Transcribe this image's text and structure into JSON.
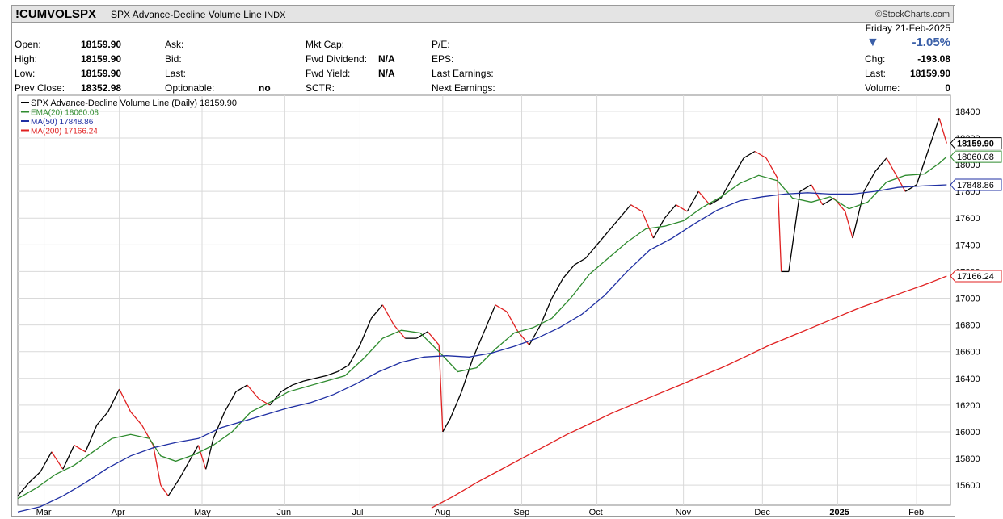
{
  "header": {
    "symbol": "!CUMVOLSPX",
    "name": "SPX Advance-Decline Volume Line",
    "exchange": "INDX",
    "brand": "©StockCharts.com"
  },
  "quote": {
    "open_label": "Open:",
    "open": "18159.90",
    "high_label": "High:",
    "high": "18159.90",
    "low_label": "Low:",
    "low": "18159.90",
    "prev_label": "Prev Close:",
    "prev": "18352.98",
    "ask_label": "Ask:",
    "bid_label": "Bid:",
    "last_label": "Last:",
    "optionable_label": "Optionable:",
    "optionable": "no",
    "mktcap_label": "Mkt Cap:",
    "fwddiv_label": "Fwd Dividend:",
    "fwddiv": "N/A",
    "fwdyield_label": "Fwd Yield:",
    "fwdyield": "N/A",
    "sctr_label": "SCTR:",
    "pe_label": "P/E:",
    "eps_label": "EPS:",
    "lastearn_label": "Last Earnings:",
    "nextearn_label": "Next Earnings:",
    "date": "Friday  21-Feb-2025",
    "change_pct": "-1.05%",
    "chg_label": "Chg:",
    "chg": "-193.08",
    "last_label2": "Last:",
    "last": "18159.90",
    "volume_label": "Volume:",
    "volume": "0",
    "down_color": "#3a5fa8"
  },
  "legend": [
    {
      "label": "SPX Advance-Decline Volume Line (Daily) 18159.90",
      "color": "#000000"
    },
    {
      "label": "EMA(20) 18060.08",
      "color": "#2e8b2e"
    },
    {
      "label": "MA(50) 17848.86",
      "color": "#1f2fa3"
    },
    {
      "label": "MA(200) 17166.24",
      "color": "#e02020"
    }
  ],
  "price_tags": [
    {
      "value": 18159.9,
      "label": "18159.90",
      "color": "#000000"
    },
    {
      "value": 18060.08,
      "label": "18060.08",
      "color": "#2e8b2e"
    },
    {
      "value": 17848.86,
      "label": "17848.86",
      "color": "#1f2fa3"
    },
    {
      "value": 17166.24,
      "label": "17166.24",
      "color": "#e02020"
    }
  ],
  "chart_data": {
    "type": "line",
    "ylim": [
      15450,
      18520
    ],
    "yticks": [
      15600,
      15800,
      16000,
      16200,
      16400,
      16600,
      16800,
      17000,
      17200,
      17400,
      17600,
      17800,
      18000,
      18200,
      18400
    ],
    "xlim": [
      0,
      248
    ],
    "xticks": [
      {
        "label": "Mar",
        "x": 7
      },
      {
        "label": "Apr",
        "x": 27
      },
      {
        "label": "May",
        "x": 49
      },
      {
        "label": "Jun",
        "x": 71
      },
      {
        "label": "Jul",
        "x": 91
      },
      {
        "label": "Aug",
        "x": 113
      },
      {
        "label": "Sep",
        "x": 134
      },
      {
        "label": "Oct",
        "x": 154
      },
      {
        "label": "Nov",
        "x": 177
      },
      {
        "label": "Dec",
        "x": 198
      },
      {
        "label": "2025",
        "x": 218,
        "bold": true
      },
      {
        "label": "Feb",
        "x": 239
      }
    ],
    "grid": true,
    "up_color": "#000000",
    "down_color": "#e02020",
    "series": [
      {
        "name": "SPX Advance-Decline Volume Line (Daily)",
        "color": "#000000",
        "kind": "price",
        "points": [
          [
            0,
            15520
          ],
          [
            3,
            15620
          ],
          [
            6,
            15700
          ],
          [
            9,
            15850
          ],
          [
            12,
            15720
          ],
          [
            15,
            15900
          ],
          [
            18,
            15850
          ],
          [
            21,
            16050
          ],
          [
            24,
            16150
          ],
          [
            27,
            16320
          ],
          [
            30,
            16150
          ],
          [
            33,
            16050
          ],
          [
            36,
            15900
          ],
          [
            38,
            15600
          ],
          [
            40,
            15520
          ],
          [
            43,
            15650
          ],
          [
            46,
            15800
          ],
          [
            48,
            15900
          ],
          [
            50,
            15720
          ],
          [
            52,
            15950
          ],
          [
            55,
            16150
          ],
          [
            58,
            16300
          ],
          [
            61,
            16350
          ],
          [
            64,
            16250
          ],
          [
            67,
            16200
          ],
          [
            70,
            16300
          ],
          [
            73,
            16350
          ],
          [
            76,
            16380
          ],
          [
            79,
            16400
          ],
          [
            82,
            16420
          ],
          [
            85,
            16450
          ],
          [
            88,
            16500
          ],
          [
            91,
            16650
          ],
          [
            94,
            16850
          ],
          [
            97,
            16950
          ],
          [
            100,
            16800
          ],
          [
            103,
            16700
          ],
          [
            106,
            16700
          ],
          [
            109,
            16750
          ],
          [
            112,
            16650
          ],
          [
            113,
            16000
          ],
          [
            115,
            16100
          ],
          [
            118,
            16300
          ],
          [
            121,
            16550
          ],
          [
            124,
            16750
          ],
          [
            127,
            16950
          ],
          [
            130,
            16900
          ],
          [
            133,
            16750
          ],
          [
            136,
            16650
          ],
          [
            139,
            16800
          ],
          [
            142,
            17000
          ],
          [
            145,
            17150
          ],
          [
            148,
            17250
          ],
          [
            151,
            17300
          ],
          [
            154,
            17400
          ],
          [
            157,
            17500
          ],
          [
            160,
            17600
          ],
          [
            163,
            17700
          ],
          [
            166,
            17650
          ],
          [
            169,
            17450
          ],
          [
            172,
            17600
          ],
          [
            175,
            17700
          ],
          [
            178,
            17650
          ],
          [
            181,
            17800
          ],
          [
            184,
            17700
          ],
          [
            187,
            17750
          ],
          [
            190,
            17900
          ],
          [
            193,
            18050
          ],
          [
            196,
            18100
          ],
          [
            199,
            18050
          ],
          [
            202,
            17900
          ],
          [
            203,
            17200
          ],
          [
            205,
            17200
          ],
          [
            208,
            17800
          ],
          [
            211,
            17850
          ],
          [
            214,
            17700
          ],
          [
            217,
            17750
          ],
          [
            220,
            17650
          ],
          [
            222,
            17450
          ],
          [
            225,
            17800
          ],
          [
            228,
            17950
          ],
          [
            231,
            18050
          ],
          [
            234,
            17900
          ],
          [
            236,
            17800
          ],
          [
            239,
            17850
          ],
          [
            242,
            18100
          ],
          [
            245,
            18350
          ],
          [
            247,
            18160
          ]
        ]
      },
      {
        "name": "EMA(20)",
        "color": "#2e8b2e",
        "kind": "ma",
        "points": [
          [
            0,
            15500
          ],
          [
            5,
            15580
          ],
          [
            10,
            15680
          ],
          [
            15,
            15750
          ],
          [
            20,
            15850
          ],
          [
            25,
            15950
          ],
          [
            30,
            15980
          ],
          [
            35,
            15950
          ],
          [
            38,
            15820
          ],
          [
            42,
            15780
          ],
          [
            47,
            15830
          ],
          [
            52,
            15900
          ],
          [
            57,
            16000
          ],
          [
            62,
            16150
          ],
          [
            67,
            16220
          ],
          [
            72,
            16300
          ],
          [
            77,
            16340
          ],
          [
            82,
            16380
          ],
          [
            87,
            16420
          ],
          [
            92,
            16550
          ],
          [
            97,
            16700
          ],
          [
            102,
            16760
          ],
          [
            107,
            16740
          ],
          [
            112,
            16600
          ],
          [
            117,
            16450
          ],
          [
            122,
            16480
          ],
          [
            127,
            16620
          ],
          [
            132,
            16740
          ],
          [
            137,
            16780
          ],
          [
            142,
            16850
          ],
          [
            147,
            17000
          ],
          [
            152,
            17180
          ],
          [
            157,
            17300
          ],
          [
            162,
            17420
          ],
          [
            167,
            17520
          ],
          [
            172,
            17540
          ],
          [
            177,
            17580
          ],
          [
            182,
            17680
          ],
          [
            187,
            17760
          ],
          [
            192,
            17860
          ],
          [
            197,
            17920
          ],
          [
            202,
            17880
          ],
          [
            206,
            17750
          ],
          [
            211,
            17720
          ],
          [
            216,
            17760
          ],
          [
            221,
            17670
          ],
          [
            226,
            17720
          ],
          [
            231,
            17870
          ],
          [
            236,
            17920
          ],
          [
            241,
            17930
          ],
          [
            245,
            18010
          ],
          [
            247,
            18060
          ]
        ]
      },
      {
        "name": "MA(50)",
        "color": "#1f2fa3",
        "kind": "ma",
        "points": [
          [
            0,
            15400
          ],
          [
            6,
            15440
          ],
          [
            12,
            15520
          ],
          [
            18,
            15620
          ],
          [
            24,
            15730
          ],
          [
            30,
            15820
          ],
          [
            36,
            15880
          ],
          [
            42,
            15920
          ],
          [
            48,
            15950
          ],
          [
            54,
            16030
          ],
          [
            60,
            16080
          ],
          [
            66,
            16130
          ],
          [
            72,
            16180
          ],
          [
            78,
            16220
          ],
          [
            84,
            16280
          ],
          [
            90,
            16360
          ],
          [
            96,
            16450
          ],
          [
            102,
            16520
          ],
          [
            108,
            16560
          ],
          [
            114,
            16570
          ],
          [
            120,
            16560
          ],
          [
            126,
            16590
          ],
          [
            132,
            16640
          ],
          [
            138,
            16700
          ],
          [
            144,
            16780
          ],
          [
            150,
            16880
          ],
          [
            156,
            17020
          ],
          [
            162,
            17200
          ],
          [
            168,
            17360
          ],
          [
            174,
            17450
          ],
          [
            180,
            17560
          ],
          [
            186,
            17660
          ],
          [
            192,
            17730
          ],
          [
            198,
            17760
          ],
          [
            204,
            17780
          ],
          [
            210,
            17790
          ],
          [
            216,
            17780
          ],
          [
            222,
            17780
          ],
          [
            228,
            17800
          ],
          [
            234,
            17830
          ],
          [
            240,
            17840
          ],
          [
            247,
            17849
          ]
        ]
      },
      {
        "name": "MA(200)",
        "color": "#e02020",
        "kind": "ma",
        "points": [
          [
            110,
            15430
          ],
          [
            116,
            15520
          ],
          [
            122,
            15620
          ],
          [
            128,
            15710
          ],
          [
            134,
            15800
          ],
          [
            140,
            15890
          ],
          [
            146,
            15980
          ],
          [
            152,
            16060
          ],
          [
            158,
            16140
          ],
          [
            164,
            16210
          ],
          [
            170,
            16280
          ],
          [
            176,
            16350
          ],
          [
            182,
            16420
          ],
          [
            188,
            16490
          ],
          [
            194,
            16570
          ],
          [
            200,
            16650
          ],
          [
            206,
            16720
          ],
          [
            212,
            16790
          ],
          [
            218,
            16860
          ],
          [
            224,
            16930
          ],
          [
            230,
            16990
          ],
          [
            236,
            17050
          ],
          [
            242,
            17110
          ],
          [
            247,
            17166
          ]
        ]
      }
    ]
  }
}
